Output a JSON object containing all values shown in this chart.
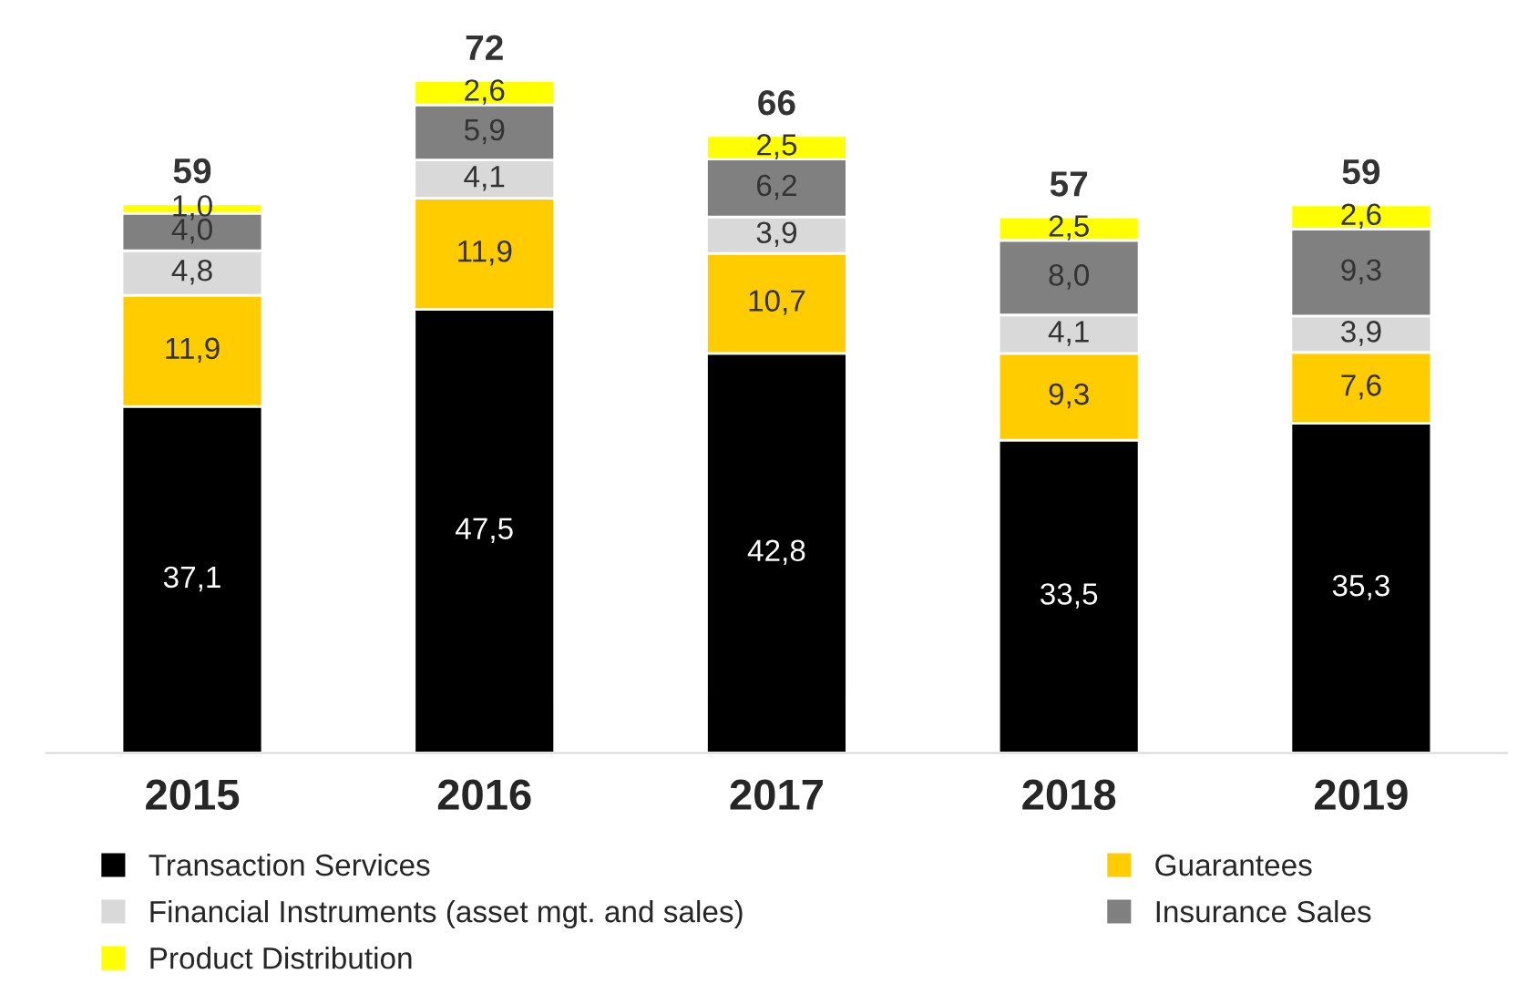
{
  "chart_data": {
    "type": "bar",
    "stacked": true,
    "categories": [
      "2015",
      "2016",
      "2017",
      "2018",
      "2019"
    ],
    "series": [
      {
        "name": "Transaction Services",
        "color": "#000000",
        "values": [
          37.1,
          47.5,
          42.8,
          33.5,
          35.3
        ],
        "value_labels": [
          "37,1",
          "47,5",
          "42,8",
          "33,5",
          "35,3"
        ]
      },
      {
        "name": "Guarantees",
        "color": "#ffcc00",
        "values": [
          11.9,
          11.9,
          10.7,
          9.3,
          7.6
        ],
        "value_labels": [
          "11,9",
          "11,9",
          "10,7",
          "9,3",
          "7,6"
        ]
      },
      {
        "name": "Financial Instruments (asset mgt. and sales)",
        "color": "#d9d9d9",
        "values": [
          4.8,
          4.1,
          3.9,
          4.1,
          3.9
        ],
        "value_labels": [
          "4,8",
          "4,1",
          "3,9",
          "4,1",
          "3,9"
        ]
      },
      {
        "name": "Insurance Sales",
        "color": "#808080",
        "values": [
          4.0,
          5.9,
          6.2,
          8.0,
          9.3
        ],
        "value_labels": [
          "4,0",
          "5,9",
          "6,2",
          "8,0",
          "9,3"
        ]
      },
      {
        "name": "Product Distribution",
        "color": "#ffff00",
        "values": [
          1.0,
          2.6,
          2.5,
          2.5,
          2.6
        ],
        "value_labels": [
          "1,0",
          "2,6",
          "2,5",
          "2,5",
          "2,6"
        ]
      }
    ],
    "totals": [
      "59",
      "72",
      "66",
      "57",
      "59"
    ],
    "legend": "bottom",
    "grid": false
  }
}
